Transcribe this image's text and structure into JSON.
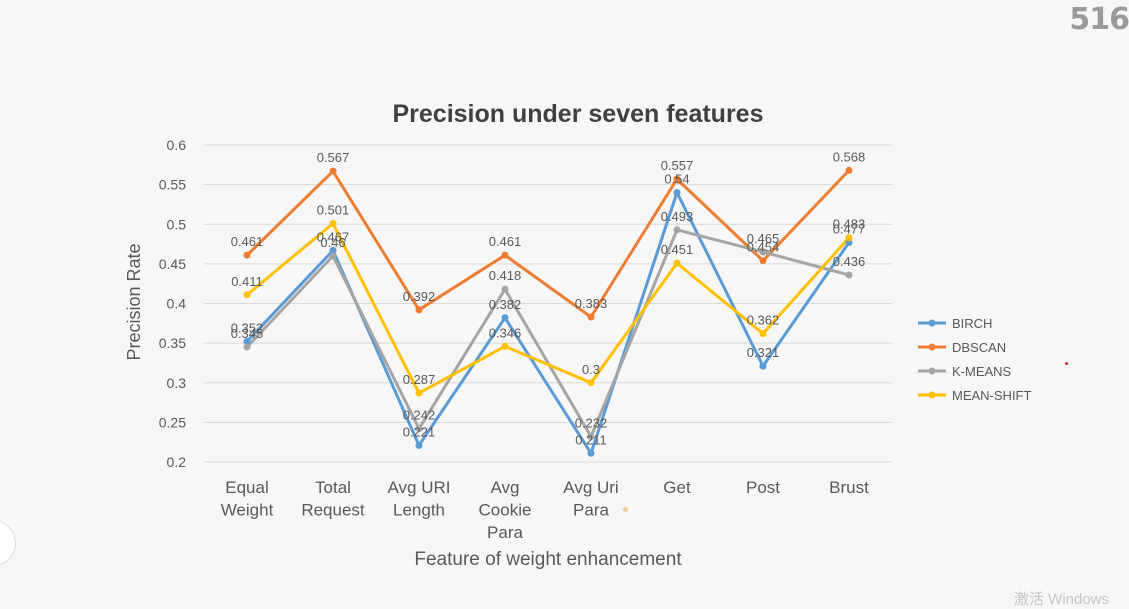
{
  "overlay": {
    "corner_number": "516",
    "watermark": "激活 Windows"
  },
  "colors": {
    "BIRCH": "#5b9bd5",
    "DBSCAN": "#ed7d31",
    "K-MEANS": "#a5a5a5",
    "MEAN-SHIFT": "#ffc000",
    "grid": "#d9d9d9",
    "text": "#595959",
    "title": "#404040"
  },
  "chart_data": {
    "type": "line",
    "title": "Precision under seven features",
    "xlabel": "Feature of weight enhancement",
    "ylabel": "Precision Rate",
    "categories": [
      [
        "Equal",
        "Weight"
      ],
      [
        "Total",
        "Request"
      ],
      [
        "Avg URI",
        "Length"
      ],
      [
        "Avg",
        "Cookie",
        "Para"
      ],
      [
        "Avg Uri",
        "Para"
      ],
      [
        "Get"
      ],
      [
        "Post"
      ],
      [
        "Brust"
      ]
    ],
    "ylim": [
      0.2,
      0.6
    ],
    "yticks": [
      "0.2",
      "0.25",
      "0.3",
      "0.35",
      "0.4",
      "0.45",
      "0.5",
      "0.55",
      "0.6"
    ],
    "grid": true,
    "legend_position": "right",
    "series": [
      {
        "name": "BIRCH",
        "values": [
          0.352,
          0.467,
          0.221,
          0.382,
          0.211,
          0.54,
          0.321,
          0.477
        ]
      },
      {
        "name": "DBSCAN",
        "values": [
          0.461,
          0.567,
          0.392,
          0.461,
          0.383,
          0.557,
          0.454,
          0.568
        ]
      },
      {
        "name": "K-MEANS",
        "values": [
          0.345,
          0.46,
          0.242,
          0.418,
          0.232,
          0.493,
          0.465,
          0.436
        ]
      },
      {
        "name": "MEAN-SHIFT",
        "values": [
          0.411,
          0.501,
          0.287,
          0.346,
          0.3,
          0.451,
          0.362,
          0.483
        ]
      }
    ]
  }
}
